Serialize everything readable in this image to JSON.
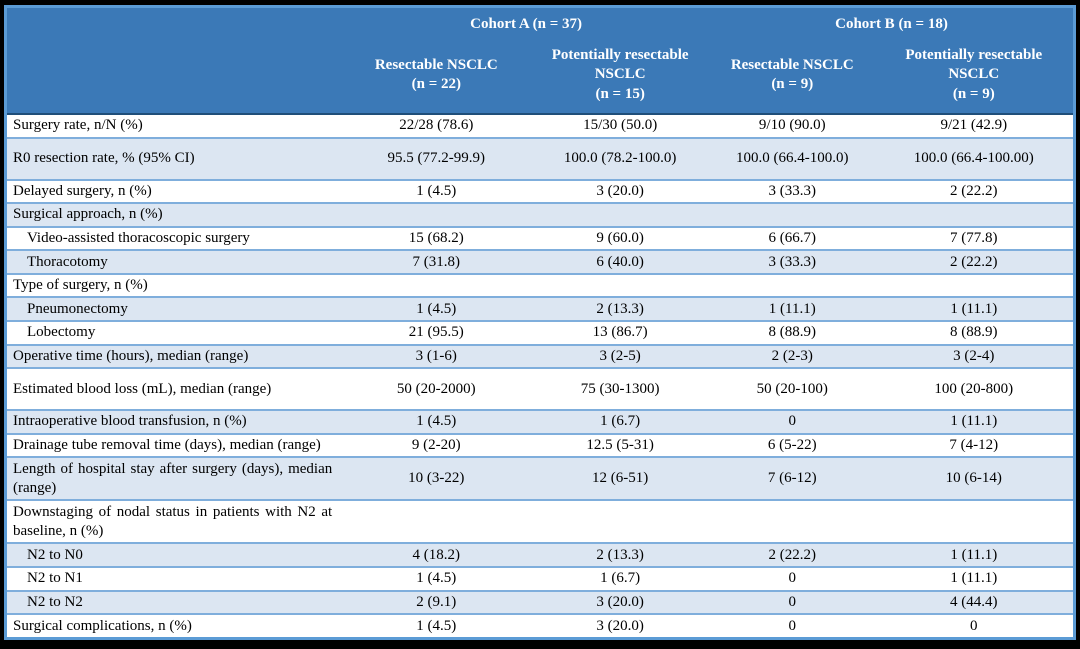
{
  "table": {
    "cohorts": [
      {
        "label": "Cohort A (n = 37)"
      },
      {
        "label": "Cohort B (n = 18)"
      }
    ],
    "columns": [
      {
        "title": "Resectable NSCLC",
        "n": "(n = 22)"
      },
      {
        "title": "Potentially resectable NSCLC",
        "n": "(n = 15)"
      },
      {
        "title": "Resectable NSCLC",
        "n": "(n = 9)"
      },
      {
        "title": "Potentially resectable NSCLC",
        "n": "(n = 9)"
      }
    ],
    "rows": [
      {
        "label": "Surgery rate, n/N (%)",
        "indent": false,
        "tall": false,
        "values": [
          "22/28 (78.6)",
          "15/30 (50.0)",
          "9/10 (90.0)",
          "9/21 (42.9)"
        ]
      },
      {
        "label": "R0 resection rate, % (95% CI)",
        "indent": false,
        "tall": true,
        "values": [
          "95.5 (77.2-99.9)",
          "100.0 (78.2-100.0)",
          "100.0 (66.4-100.0)",
          "100.0 (66.4-100.00)"
        ]
      },
      {
        "label": "Delayed surgery, n (%)",
        "indent": false,
        "tall": false,
        "values": [
          "1 (4.5)",
          "3 (20.0)",
          "3 (33.3)",
          "2 (22.2)"
        ]
      },
      {
        "label": "Surgical approach, n (%)",
        "indent": false,
        "tall": false,
        "values": [
          "",
          "",
          "",
          ""
        ]
      },
      {
        "label": "Video-assisted thoracoscopic surgery",
        "indent": true,
        "tall": false,
        "values": [
          "15 (68.2)",
          "9 (60.0)",
          "6 (66.7)",
          "7 (77.8)"
        ]
      },
      {
        "label": "Thoracotomy",
        "indent": true,
        "tall": false,
        "values": [
          "7 (31.8)",
          "6 (40.0)",
          "3 (33.3)",
          "2 (22.2)"
        ]
      },
      {
        "label": "Type of surgery, n (%)",
        "indent": false,
        "tall": false,
        "values": [
          "",
          "",
          "",
          ""
        ]
      },
      {
        "label": "Pneumonectomy",
        "indent": true,
        "tall": false,
        "values": [
          "1 (4.5)",
          "2 (13.3)",
          "1 (11.1)",
          "1 (11.1)"
        ]
      },
      {
        "label": "Lobectomy",
        "indent": true,
        "tall": false,
        "values": [
          "21 (95.5)",
          "13 (86.7)",
          "8 (88.9)",
          "8 (88.9)"
        ]
      },
      {
        "label": "Operative time (hours), median (range)",
        "indent": false,
        "tall": false,
        "values": [
          "3 (1-6)",
          "3 (2-5)",
          "2 (2-3)",
          "3 (2-4)"
        ]
      },
      {
        "label": "Estimated blood loss (mL), median (range)",
        "indent": false,
        "tall": true,
        "values": [
          "50 (20-2000)",
          "75 (30-1300)",
          "50 (20-100)",
          "100 (20-800)"
        ]
      },
      {
        "label": "Intraoperative blood transfusion, n (%)",
        "indent": false,
        "tall": false,
        "values": [
          "1 (4.5)",
          "1 (6.7)",
          "0",
          "1 (11.1)"
        ]
      },
      {
        "label": "Drainage tube removal time (days), median (range)",
        "indent": false,
        "tall": false,
        "values": [
          "9 (2-20)",
          "12.5 (5-31)",
          "6 (5-22)",
          "7 (4-12)"
        ]
      },
      {
        "label": "Length of hospital stay after surgery (days), median (range)",
        "indent": false,
        "tall": false,
        "values": [
          "10 (3-22)",
          "12 (6-51)",
          "7 (6-12)",
          "10 (6-14)"
        ]
      },
      {
        "label": "Downstaging of nodal status in patients with N2 at baseline, n (%)",
        "indent": false,
        "tall": false,
        "values": [
          "",
          "",
          "",
          ""
        ]
      },
      {
        "label": "N2 to N0",
        "indent": true,
        "tall": false,
        "values": [
          "4 (18.2)",
          "2 (13.3)",
          "2 (22.2)",
          "1 (11.1)"
        ]
      },
      {
        "label": "N2 to N1",
        "indent": true,
        "tall": false,
        "values": [
          "1 (4.5)",
          "1 (6.7)",
          "0",
          "1 (11.1)"
        ]
      },
      {
        "label": "N2 to N2",
        "indent": true,
        "tall": false,
        "values": [
          "2 (9.1)",
          "3 (20.0)",
          "0",
          "4 (44.4)"
        ]
      },
      {
        "label": "Surgical complications, n (%)",
        "indent": false,
        "tall": false,
        "values": [
          "1 (4.5)",
          "3 (20.0)",
          "0",
          "0"
        ]
      }
    ],
    "colors": {
      "header_background": "#3B79B7",
      "header_text": "#FFFFFF",
      "stripe_background": "#DCE6F2",
      "row_border": "#7FAEDC",
      "outer_border": "#5B9BD5",
      "header_divider": "#1F4E79",
      "body_text": "#000000",
      "page_background": "#000000"
    }
  }
}
